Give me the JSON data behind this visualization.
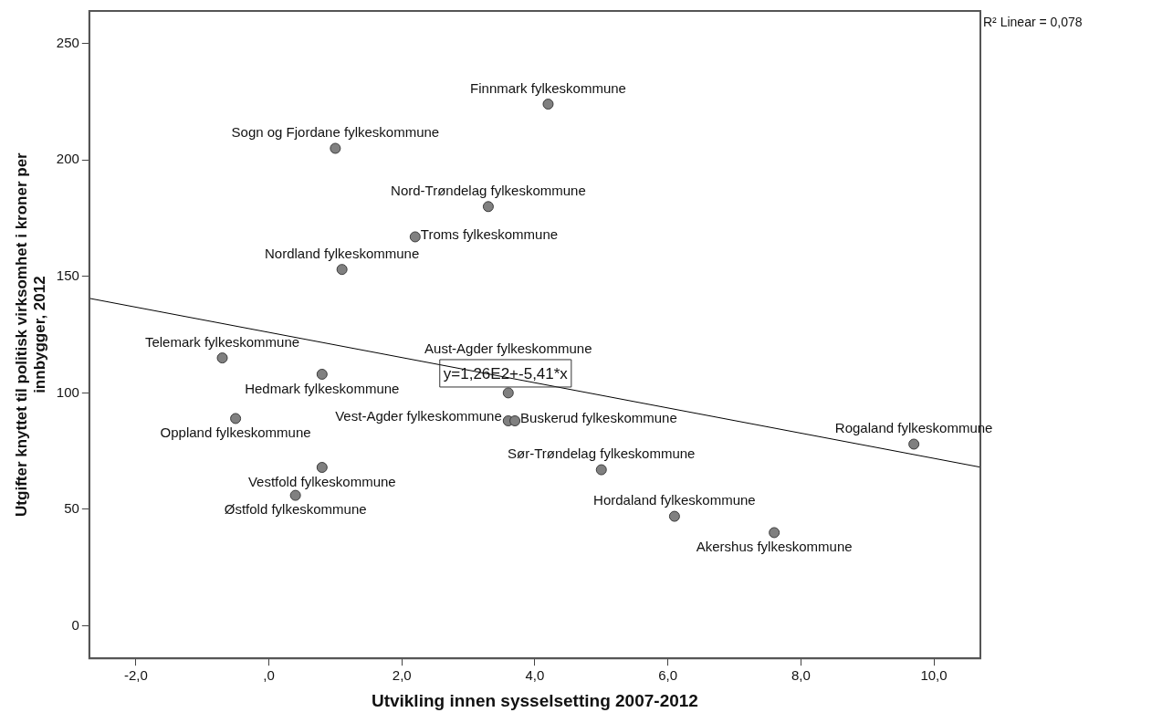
{
  "chart_data": {
    "type": "scatter",
    "xlabel": "Utvikling innen sysselsetting 2007-2012",
    "ylabel": "Utgifter knyttet til politisk virksomhet i kroner per innbygger, 2012",
    "xlim": [
      -2.7,
      10.7
    ],
    "ylim": [
      -14,
      264
    ],
    "xticks": [
      {
        "value": -2,
        "label": "-2,0"
      },
      {
        "value": 0,
        "label": ",0"
      },
      {
        "value": 2,
        "label": "2,0"
      },
      {
        "value": 4,
        "label": "4,0"
      },
      {
        "value": 6,
        "label": "6,0"
      },
      {
        "value": 8,
        "label": "8,0"
      },
      {
        "value": 10,
        "label": "10,0"
      }
    ],
    "yticks": [
      0,
      50,
      100,
      150,
      200,
      250
    ],
    "grid": false,
    "legend": false,
    "series": [
      {
        "color": "#808080",
        "marker": "circle",
        "x": [
          4.2,
          1.0,
          3.3,
          2.2,
          1.1,
          -0.7,
          0.8,
          3.6,
          -0.5,
          3.6,
          3.7,
          0.8,
          0.4,
          5.0,
          6.1,
          7.6,
          9.7
        ],
        "values": [
          224,
          205,
          180,
          167,
          153,
          115,
          108,
          100,
          89,
          88,
          88,
          68,
          56,
          67,
          47,
          40,
          78
        ],
        "value_labels": [
          "Finnmark fylkeskommune",
          "Sogn og Fjordane fylkeskommune",
          "Nord-Trøndelag fylkeskommune",
          "Troms fylkeskommune",
          "Nordland fylkeskommune",
          "Telemark fylkeskommune",
          "Hedmark fylkeskommune",
          "Aust-Agder fylkeskommune",
          "Oppland fylkeskommune",
          "Vest-Agder fylkeskommune",
          "Buskerud fylkeskommune",
          "Vestfold fylkeskommune",
          "Østfold fylkeskommune",
          "Sør-Trøndelag fylkeskommune",
          "Hordaland fylkeskommune",
          "Akershus fylkeskommune",
          "Rogaland fylkeskommune"
        ]
      },
      {
        "type": "line",
        "marker": "none",
        "color": "#000000",
        "x": [
          -2.7,
          10.7
        ],
        "values": [
          140.6,
          68.1
        ]
      }
    ],
    "annotations": [
      {
        "text": "y=1,26E2+-5,41*x",
        "x": 3.6,
        "y": 108
      },
      "R² Linear = 0,078"
    ]
  }
}
